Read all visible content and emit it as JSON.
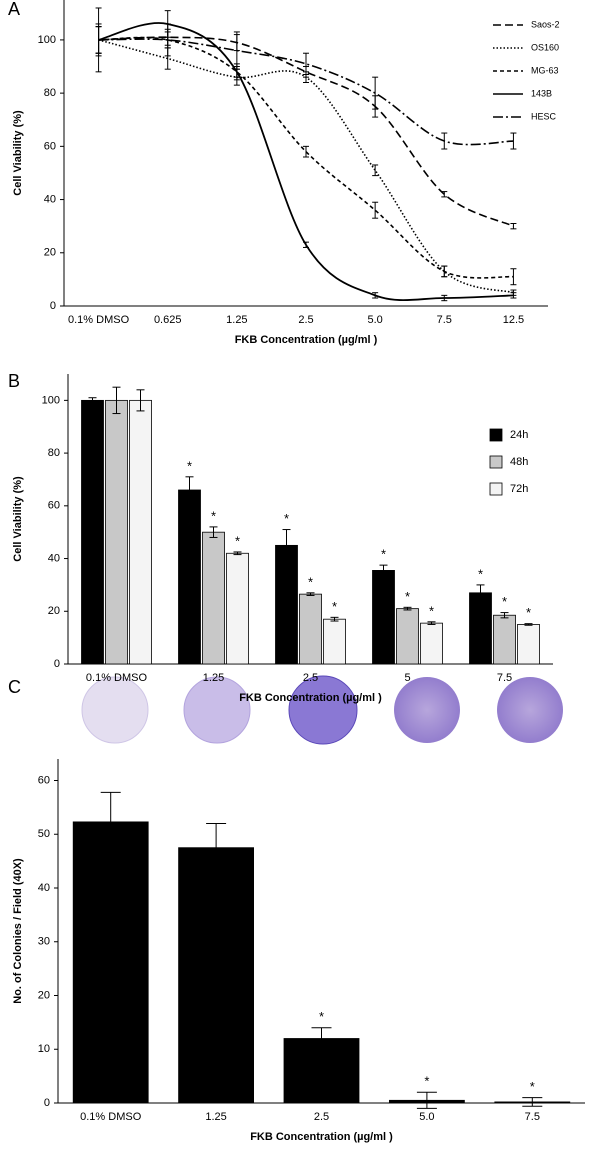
{
  "chart_data": [
    {
      "type": "line",
      "panel": "A",
      "x_label": "FKB Concentration (µg/ml )",
      "y_label": "Cell Viability (%)",
      "categories": [
        "0.1% DMSO",
        "0.625",
        "1.25",
        "2.5",
        "5.0",
        "7.5",
        "12.5"
      ],
      "ylim": [
        0,
        115
      ],
      "yticks": [
        0,
        20,
        40,
        60,
        80,
        100
      ],
      "legend": "top-right",
      "series": [
        {
          "name": "Saos-2",
          "color": "#000000",
          "dash": "8,4",
          "values": [
            100,
            101,
            99,
            88,
            75,
            42,
            30
          ],
          "errors": [
            6,
            3,
            3,
            2,
            4,
            1,
            1
          ]
        },
        {
          "name": "OS160",
          "color": "#000000",
          "dash": "1.5,2",
          "values": [
            100,
            93,
            86,
            86,
            51,
            13,
            5
          ],
          "errors": [
            5,
            4,
            3,
            2,
            2,
            2,
            1
          ]
        },
        {
          "name": "MG-63",
          "color": "#000000",
          "dash": "4,3",
          "values": [
            100,
            100,
            88,
            58,
            36,
            13,
            11
          ],
          "errors": [
            5,
            3,
            2,
            2,
            3,
            2,
            3
          ]
        },
        {
          "name": "143B",
          "color": "#000000",
          "dash": "",
          "values": [
            100,
            106,
            88,
            23,
            4,
            3,
            4
          ],
          "errors": [
            5,
            5,
            3,
            1,
            1,
            1,
            1
          ]
        },
        {
          "name": "HESC",
          "color": "#000000",
          "dash": "10,3,2,3",
          "values": [
            100,
            100,
            96,
            91,
            80,
            62,
            62
          ],
          "errors": [
            12,
            6,
            7,
            4,
            6,
            3,
            3
          ]
        }
      ]
    },
    {
      "type": "bar",
      "panel": "B",
      "x_label": "FKB Concentration (µg/ml )",
      "y_label": "Cell Viability (%)",
      "categories": [
        "0.1% DMSO",
        "1.25",
        "2.5",
        "5",
        "7.5"
      ],
      "ylim": [
        0,
        110
      ],
      "yticks": [
        0,
        20,
        40,
        60,
        80,
        100
      ],
      "legend": "top-right",
      "series": [
        {
          "name": "24h",
          "color": "#000000",
          "values": [
            100,
            66,
            45,
            35.5,
            27
          ],
          "errors": [
            1,
            5,
            6,
            2,
            3
          ],
          "markers": [
            null,
            "*",
            "*",
            "*",
            "*"
          ]
        },
        {
          "name": "48h",
          "color": "#c8c8c8",
          "values": [
            100,
            50,
            26.5,
            21,
            18.5
          ],
          "errors": [
            5,
            2,
            0.5,
            0.5,
            1
          ],
          "markers": [
            null,
            "*",
            "*",
            "*",
            "*"
          ]
        },
        {
          "name": "72h",
          "color": "#f4f4f4",
          "values": [
            100,
            42,
            17,
            15.5,
            15
          ],
          "errors": [
            4,
            0.5,
            0.7,
            0.5,
            0.3
          ],
          "markers": [
            null,
            "*",
            "*",
            "*",
            "*"
          ]
        }
      ]
    },
    {
      "type": "bar",
      "panel": "C",
      "x_label": "FKB Concentration (µg/ml )",
      "y_label": "No. of Colonies / Field (40X)",
      "categories": [
        "0.1% DMSO",
        "1.25",
        "2.5",
        "5.0",
        "7.5"
      ],
      "ylim": [
        0,
        64
      ],
      "yticks": [
        0,
        10,
        20,
        30,
        40,
        50,
        60
      ],
      "color": "#000000",
      "values": [
        52.3,
        47.5,
        12,
        0.5,
        0.2
      ],
      "errors": [
        5.5,
        4.5,
        2,
        1.5,
        0.8
      ],
      "markers": [
        null,
        null,
        "*",
        "*",
        "*"
      ]
    }
  ]
}
